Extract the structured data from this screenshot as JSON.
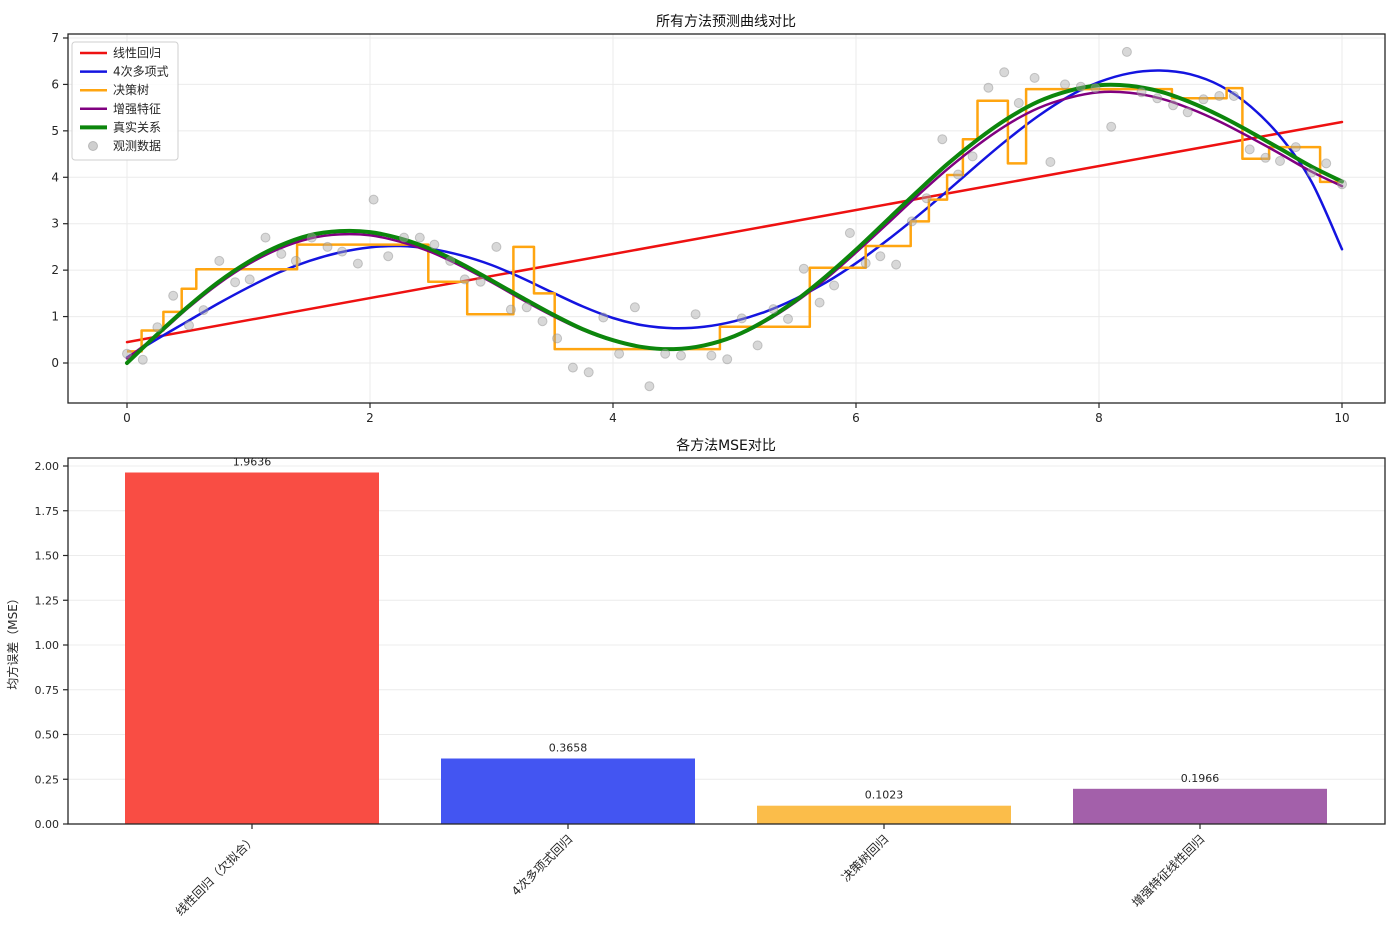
{
  "chart_data": [
    {
      "type": "line",
      "title": "所有方法预测曲线对比",
      "xlabel": "",
      "ylabel": "",
      "x_ticks": [
        0,
        2,
        4,
        6,
        8,
        10
      ],
      "y_ticks": [
        0,
        1,
        2,
        3,
        4,
        5,
        6,
        7
      ],
      "xlim": [
        -0.51,
        10.35
      ],
      "ylim": [
        -0.86,
        7.09
      ],
      "grid": true,
      "legend_position": "upper left",
      "series": [
        {
          "id": "linear-regression",
          "name": "线性回归",
          "kind": "line",
          "color": "#ee1111",
          "width": 2.5,
          "points": [
            [
              0,
              0.45
            ],
            [
              10,
              5.19
            ]
          ]
        },
        {
          "id": "poly4",
          "name": "4次多项式",
          "kind": "line",
          "color": "#1414e0",
          "width": 2.5,
          "points": [
            [
              0,
              0.12
            ],
            [
              0.25,
              0.52
            ],
            [
              0.5,
              0.9
            ],
            [
              0.75,
              1.28
            ],
            [
              1,
              1.63
            ],
            [
              1.25,
              1.95
            ],
            [
              1.5,
              2.2
            ],
            [
              1.75,
              2.38
            ],
            [
              2,
              2.49
            ],
            [
              2.25,
              2.52
            ],
            [
              2.5,
              2.46
            ],
            [
              2.75,
              2.32
            ],
            [
              3,
              2.11
            ],
            [
              3.25,
              1.83
            ],
            [
              3.5,
              1.52
            ],
            [
              3.75,
              1.22
            ],
            [
              4,
              0.97
            ],
            [
              4.25,
              0.81
            ],
            [
              4.5,
              0.75
            ],
            [
              4.75,
              0.78
            ],
            [
              5,
              0.9
            ],
            [
              5.25,
              1.1
            ],
            [
              5.5,
              1.38
            ],
            [
              5.75,
              1.73
            ],
            [
              6,
              2.15
            ],
            [
              6.25,
              2.63
            ],
            [
              6.5,
              3.15
            ],
            [
              6.75,
              3.7
            ],
            [
              7,
              4.27
            ],
            [
              7.25,
              4.82
            ],
            [
              7.5,
              5.32
            ],
            [
              7.75,
              5.74
            ],
            [
              8,
              6.05
            ],
            [
              8.25,
              6.24
            ],
            [
              8.5,
              6.3
            ],
            [
              8.75,
              6.22
            ],
            [
              9,
              5.97
            ],
            [
              9.25,
              5.52
            ],
            [
              9.5,
              4.85
            ],
            [
              9.75,
              3.9
            ],
            [
              10,
              2.45
            ]
          ]
        },
        {
          "id": "decision-tree",
          "name": "决策树",
          "kind": "step",
          "color": "#ffa510",
          "width": 2.5,
          "steps": [
            [
              0,
              0.12,
              0.25
            ],
            [
              0.12,
              0.3,
              0.7
            ],
            [
              0.3,
              0.45,
              1.1
            ],
            [
              0.45,
              0.57,
              1.6
            ],
            [
              0.57,
              1.4,
              2.02
            ],
            [
              1.4,
              2.48,
              2.55
            ],
            [
              2.48,
              2.8,
              1.75
            ],
            [
              2.8,
              3.18,
              1.05
            ],
            [
              3.18,
              3.35,
              2.5
            ],
            [
              3.35,
              3.52,
              1.5
            ],
            [
              3.52,
              4.88,
              0.3
            ],
            [
              4.88,
              5.62,
              0.78
            ],
            [
              5.62,
              6.08,
              2.05
            ],
            [
              6.08,
              6.45,
              2.52
            ],
            [
              6.45,
              6.6,
              3.05
            ],
            [
              6.6,
              6.75,
              3.52
            ],
            [
              6.75,
              6.88,
              4.05
            ],
            [
              6.88,
              7.0,
              4.82
            ],
            [
              7.0,
              7.25,
              5.65
            ],
            [
              7.25,
              7.4,
              4.3
            ],
            [
              7.4,
              8.6,
              5.9
            ],
            [
              8.6,
              9.05,
              5.7
            ],
            [
              9.05,
              9.18,
              5.92
            ],
            [
              9.18,
              9.4,
              4.4
            ],
            [
              9.4,
              9.82,
              4.65
            ],
            [
              9.82,
              10.0,
              3.9
            ]
          ]
        },
        {
          "id": "enhanced-features",
          "name": "增强特征",
          "kind": "line",
          "color": "#800080",
          "width": 2.5,
          "points": [
            [
              0,
              0.1
            ],
            [
              0.25,
              0.6
            ],
            [
              0.5,
              1.18
            ],
            [
              0.75,
              1.7
            ],
            [
              1,
              2.13
            ],
            [
              1.25,
              2.46
            ],
            [
              1.5,
              2.68
            ],
            [
              1.75,
              2.77
            ],
            [
              2,
              2.75
            ],
            [
              2.25,
              2.61
            ],
            [
              2.5,
              2.39
            ],
            [
              2.75,
              2.09
            ],
            [
              3,
              1.74
            ],
            [
              3.25,
              1.37
            ],
            [
              3.5,
              1.02
            ],
            [
              3.75,
              0.71
            ],
            [
              4,
              0.48
            ],
            [
              4.25,
              0.33
            ],
            [
              4.5,
              0.29
            ],
            [
              4.75,
              0.37
            ],
            [
              5,
              0.57
            ],
            [
              5.25,
              0.89
            ],
            [
              5.5,
              1.31
            ],
            [
              5.75,
              1.81
            ],
            [
              6,
              2.38
            ],
            [
              6.25,
              2.98
            ],
            [
              6.5,
              3.59
            ],
            [
              6.75,
              4.17
            ],
            [
              7,
              4.69
            ],
            [
              7.25,
              5.14
            ],
            [
              7.5,
              5.49
            ],
            [
              7.75,
              5.71
            ],
            [
              8,
              5.83
            ],
            [
              8.25,
              5.82
            ],
            [
              8.5,
              5.7
            ],
            [
              8.75,
              5.48
            ],
            [
              9,
              5.19
            ],
            [
              9.25,
              4.85
            ],
            [
              9.5,
              4.49
            ],
            [
              9.75,
              4.12
            ],
            [
              10,
              3.81
            ]
          ]
        },
        {
          "id": "true-relation",
          "name": "真实关系",
          "kind": "line",
          "color": "#0c860c",
          "width": 4,
          "points": [
            [
              0,
              0
            ],
            [
              0.25,
              0.62
            ],
            [
              0.5,
              1.21
            ],
            [
              0.75,
              1.74
            ],
            [
              1,
              2.18
            ],
            [
              1.25,
              2.52
            ],
            [
              1.5,
              2.75
            ],
            [
              1.75,
              2.84
            ],
            [
              2,
              2.82
            ],
            [
              2.25,
              2.68
            ],
            [
              2.5,
              2.45
            ],
            [
              2.75,
              2.14
            ],
            [
              3,
              1.78
            ],
            [
              3.25,
              1.41
            ],
            [
              3.5,
              1.05
            ],
            [
              3.75,
              0.73
            ],
            [
              4,
              0.49
            ],
            [
              4.25,
              0.34
            ],
            [
              4.5,
              0.3
            ],
            [
              4.75,
              0.38
            ],
            [
              5,
              0.58
            ],
            [
              5.25,
              0.91
            ],
            [
              5.5,
              1.34
            ],
            [
              5.75,
              1.86
            ],
            [
              6,
              2.44
            ],
            [
              6.25,
              3.06
            ],
            [
              6.5,
              3.68
            ],
            [
              6.75,
              4.28
            ],
            [
              7,
              4.81
            ],
            [
              7.25,
              5.27
            ],
            [
              7.5,
              5.63
            ],
            [
              7.75,
              5.86
            ],
            [
              8,
              5.98
            ],
            [
              8.25,
              5.97
            ],
            [
              8.5,
              5.85
            ],
            [
              8.75,
              5.62
            ],
            [
              9,
              5.32
            ],
            [
              9.25,
              4.97
            ],
            [
              9.5,
              4.6
            ],
            [
              9.75,
              4.23
            ],
            [
              10,
              3.91
            ]
          ]
        },
        {
          "id": "observed-data",
          "name": "观测数据",
          "kind": "scatter",
          "color": "#a8a8a8",
          "points": [
            [
              0,
              0.2
            ],
            [
              0.13,
              0.07
            ],
            [
              0.25,
              0.77
            ],
            [
              0.38,
              1.45
            ],
            [
              0.51,
              0.81
            ],
            [
              0.63,
              1.14
            ],
            [
              0.76,
              2.2
            ],
            [
              0.89,
              1.74
            ],
            [
              1.01,
              1.8
            ],
            [
              1.14,
              2.7
            ],
            [
              1.27,
              2.35
            ],
            [
              1.39,
              2.2
            ],
            [
              1.52,
              2.7
            ],
            [
              1.65,
              2.5
            ],
            [
              1.77,
              2.4
            ],
            [
              1.9,
              2.14
            ],
            [
              2.03,
              3.52
            ],
            [
              2.15,
              2.3
            ],
            [
              2.28,
              2.7
            ],
            [
              2.41,
              2.7
            ],
            [
              2.53,
              2.55
            ],
            [
              2.66,
              2.2
            ],
            [
              2.78,
              1.8
            ],
            [
              2.91,
              1.75
            ],
            [
              3.04,
              2.5
            ],
            [
              3.16,
              1.15
            ],
            [
              3.29,
              1.2
            ],
            [
              3.42,
              0.9
            ],
            [
              3.54,
              0.53
            ],
            [
              3.67,
              -0.1
            ],
            [
              3.8,
              -0.2
            ],
            [
              3.92,
              0.98
            ],
            [
              4.05,
              0.2
            ],
            [
              4.18,
              1.2
            ],
            [
              4.3,
              -0.5
            ],
            [
              4.43,
              0.2
            ],
            [
              4.56,
              0.16
            ],
            [
              4.68,
              1.05
            ],
            [
              4.81,
              0.16
            ],
            [
              4.94,
              0.08
            ],
            [
              5.06,
              0.96
            ],
            [
              5.19,
              0.38
            ],
            [
              5.32,
              1.16
            ],
            [
              5.44,
              0.95
            ],
            [
              5.57,
              2.03
            ],
            [
              5.7,
              1.3
            ],
            [
              5.82,
              1.67
            ],
            [
              5.95,
              2.8
            ],
            [
              6.08,
              2.15
            ],
            [
              6.2,
              2.3
            ],
            [
              6.33,
              2.12
            ],
            [
              6.46,
              3.05
            ],
            [
              6.58,
              3.55
            ],
            [
              6.71,
              4.82
            ],
            [
              6.84,
              4.06
            ],
            [
              6.96,
              4.45
            ],
            [
              7.09,
              5.93
            ],
            [
              7.22,
              6.26
            ],
            [
              7.34,
              5.6
            ],
            [
              7.47,
              6.14
            ],
            [
              7.6,
              4.33
            ],
            [
              7.72,
              6.0
            ],
            [
              7.85,
              5.95
            ],
            [
              7.97,
              5.92
            ],
            [
              8.1,
              5.09
            ],
            [
              8.23,
              6.7
            ],
            [
              8.35,
              5.83
            ],
            [
              8.48,
              5.7
            ],
            [
              8.61,
              5.55
            ],
            [
              8.73,
              5.4
            ],
            [
              8.86,
              5.68
            ],
            [
              8.99,
              5.75
            ],
            [
              9.11,
              5.75
            ],
            [
              9.24,
              4.6
            ],
            [
              9.37,
              4.42
            ],
            [
              9.49,
              4.35
            ],
            [
              9.62,
              4.65
            ],
            [
              9.75,
              4.1
            ],
            [
              9.87,
              4.3
            ],
            [
              10,
              3.85
            ]
          ]
        }
      ]
    },
    {
      "type": "bar",
      "title": "各方法MSE对比",
      "xlabel": "",
      "ylabel": "均方误差（MSE）",
      "categories": [
        "线性回归（欠拟合）",
        "4次多项式回归",
        "决策树回归",
        "增强特征线性回归"
      ],
      "values": [
        1.9636,
        0.3658,
        0.1023,
        0.1966
      ],
      "value_labels": [
        "1.9636",
        "0.3658",
        "0.1023",
        "0.1966"
      ],
      "colors": [
        "#f94d44",
        "#4355f2",
        "#fbbd4a",
        "#a360aa"
      ],
      "y_ticks": [
        0,
        0.25,
        0.5,
        0.75,
        1,
        1.25,
        1.5,
        1.75,
        2
      ],
      "ylim": [
        0,
        2.045
      ],
      "grid": true
    }
  ]
}
